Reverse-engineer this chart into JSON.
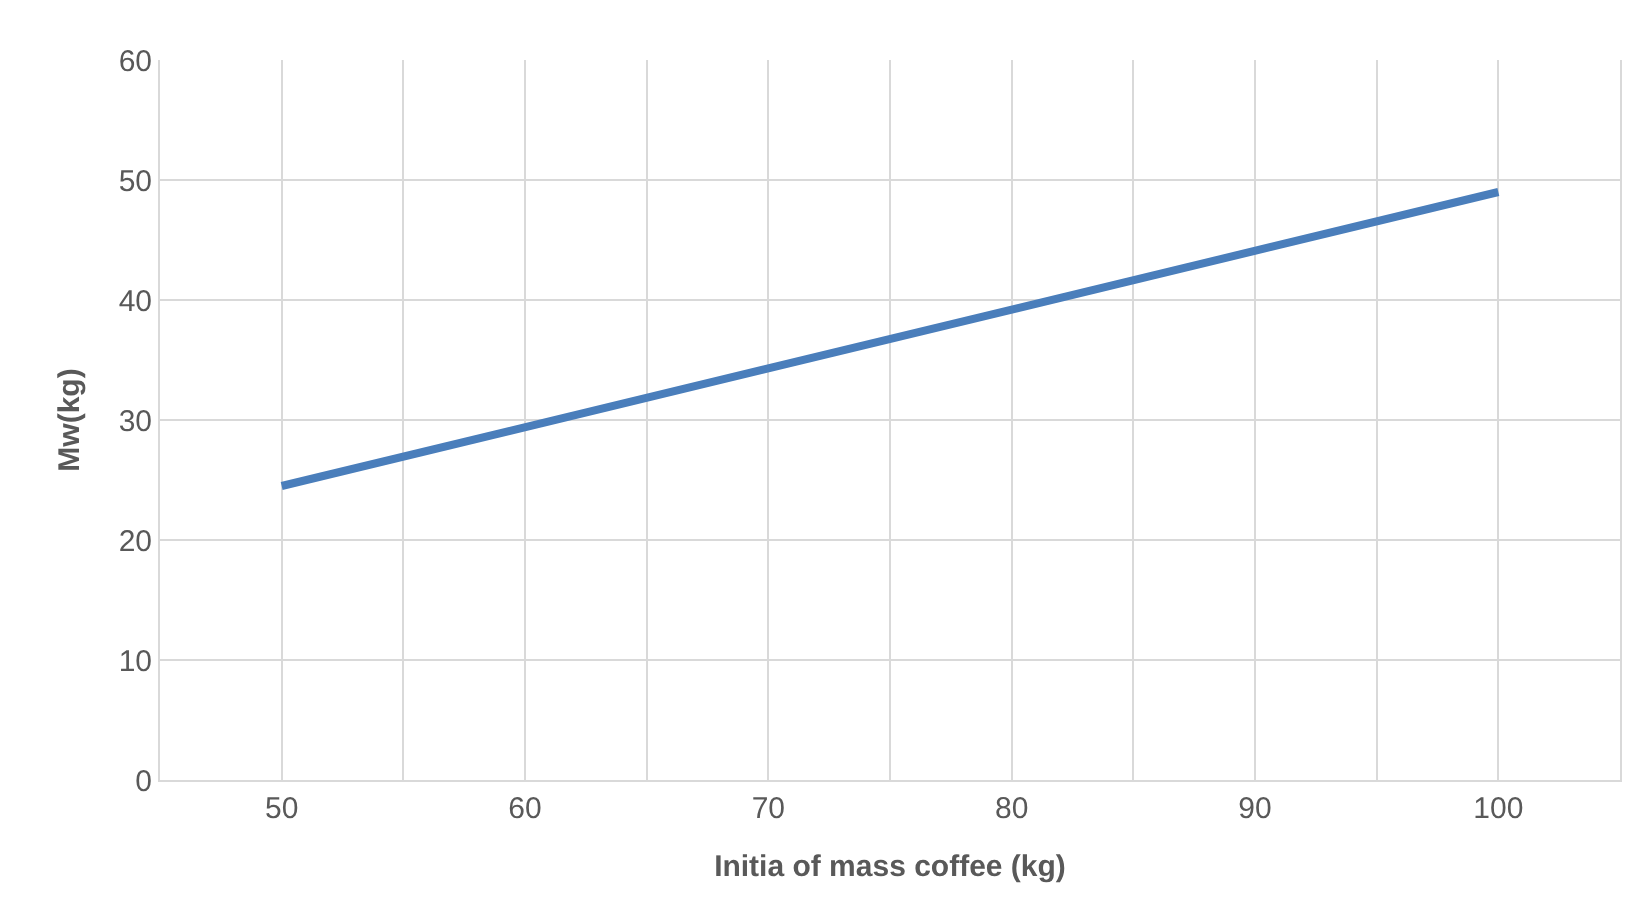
{
  "chart_data": {
    "type": "line",
    "xlabel": "Initia of mass coffee (kg)",
    "ylabel": "Mw(kg)",
    "x": [
      50,
      100
    ],
    "series": [
      {
        "color": "#4a7ebb",
        "values": [
          24.5,
          49
        ]
      }
    ],
    "xlim": [
      45,
      105
    ],
    "xticks": [
      50,
      {
        "value": 55,
        "label": null
      },
      60,
      {
        "value": 65,
        "label": null
      },
      70,
      {
        "value": 75,
        "label": null
      },
      80,
      {
        "value": 85,
        "label": null
      },
      90,
      {
        "value": 95,
        "label": null
      },
      100
    ],
    "ylim": [
      0,
      60
    ],
    "yticks": [
      0,
      10,
      20,
      30,
      40,
      50,
      60
    ],
    "grid": true,
    "marker": "none",
    "line_style": "solid"
  }
}
